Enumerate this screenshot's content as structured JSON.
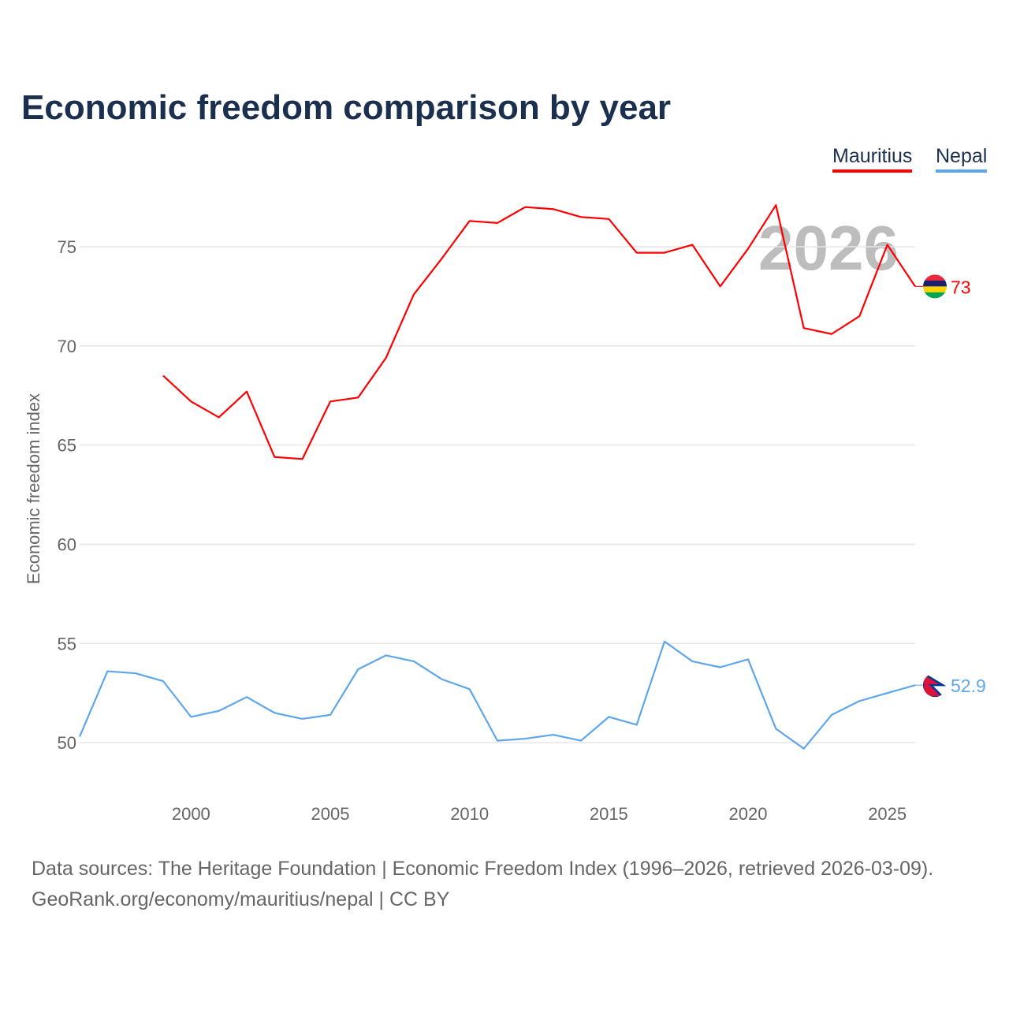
{
  "chart_data": {
    "type": "line",
    "title": "Economic freedom comparison by year",
    "ylabel": "Economic freedom index",
    "xlabel": "",
    "xlim": [
      1996,
      2026
    ],
    "ylim": [
      47.7,
      78.3
    ],
    "xticks": [
      "2000",
      "2005",
      "2010",
      "2015",
      "2020",
      "2025"
    ],
    "yticks": [
      "50",
      "55",
      "60",
      "65",
      "70",
      "75"
    ],
    "grid": true,
    "legend_placement": "top-right",
    "watermark_year": "2026",
    "series": [
      {
        "name": "Mauritius",
        "color": "#ff0000",
        "end_label": "73",
        "x": [
          1999,
          2000,
          2001,
          2002,
          2003,
          2004,
          2005,
          2006,
          2007,
          2008,
          2009,
          2010,
          2011,
          2012,
          2013,
          2014,
          2015,
          2016,
          2017,
          2018,
          2019,
          2020,
          2021,
          2022,
          2023,
          2024,
          2025,
          2026
        ],
        "values": [
          68.5,
          67.2,
          66.4,
          67.7,
          64.4,
          64.3,
          67.2,
          67.4,
          69.4,
          72.6,
          74.4,
          76.3,
          76.2,
          77.0,
          76.9,
          76.5,
          76.4,
          74.7,
          74.7,
          75.1,
          73.0,
          74.9,
          77.1,
          70.9,
          70.6,
          71.5,
          75.1,
          73.0
        ]
      },
      {
        "name": "Nepal",
        "color": "#5ea6ea",
        "end_label": "52.9",
        "x": [
          1996,
          1997,
          1998,
          1999,
          2000,
          2001,
          2002,
          2003,
          2004,
          2005,
          2006,
          2007,
          2008,
          2009,
          2010,
          2011,
          2012,
          2013,
          2014,
          2015,
          2016,
          2017,
          2018,
          2019,
          2020,
          2021,
          2022,
          2023,
          2024,
          2025,
          2026
        ],
        "values": [
          50.3,
          53.6,
          53.5,
          53.1,
          51.3,
          51.6,
          52.3,
          51.5,
          51.2,
          51.4,
          53.7,
          54.4,
          54.1,
          53.2,
          52.7,
          50.1,
          50.2,
          50.4,
          50.1,
          51.3,
          50.9,
          55.1,
          54.1,
          53.8,
          54.2,
          50.7,
          49.7,
          51.4,
          52.1,
          52.5,
          52.9
        ]
      }
    ]
  },
  "footer": {
    "line1": "Data sources: The Heritage Foundation | Economic Freedom Index (1996–2026, retrieved 2026-03-09).",
    "line2": "GeoRank.org/economy/mauritius/nepal | CC BY"
  }
}
